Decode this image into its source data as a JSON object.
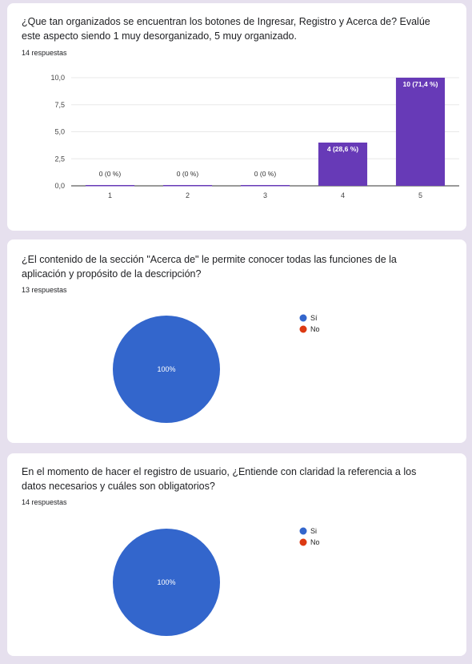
{
  "cards": [
    {
      "question": "¿Que tan organizados se encuentran los botones de Ingresar, Registro y Acerca de? Evalúe este aspecto siendo 1 muy desorganizado, 5 muy organizado.",
      "responses": "14 respuestas",
      "chart_data": {
        "type": "bar",
        "categories": [
          "1",
          "2",
          "3",
          "4",
          "5"
        ],
        "values": [
          0,
          0,
          0,
          4,
          10
        ],
        "data_labels": [
          "0 (0 %)",
          "0 (0 %)",
          "0 (0 %)",
          "4 (28,6 %)",
          "10 (71,4 %)"
        ],
        "yticks": [
          "0,0",
          "2,5",
          "5,0",
          "7,5",
          "10,0"
        ],
        "ytick_values": [
          0,
          2.5,
          5,
          7.5,
          10
        ],
        "ylim": [
          0,
          10
        ],
        "bar_color": "#673ab7",
        "grid": true
      }
    },
    {
      "question": "¿El contenido de la sección \"Acerca de\" le permite conocer todas las funciones de la aplicación y propósito de la descripción?",
      "responses": "13 respuestas",
      "chart_data": {
        "type": "pie",
        "labels": [
          "Sí",
          "No"
        ],
        "values": [
          100,
          0
        ],
        "slice_label": "100%",
        "colors": [
          "#3366cc",
          "#dc3912"
        ],
        "legend": "right"
      }
    },
    {
      "question": "En el momento de hacer el registro de usuario, ¿Entiende con claridad la referencia a los datos necesarios y cuáles son obligatorios?",
      "responses": "14 respuestas",
      "chart_data": {
        "type": "pie",
        "labels": [
          "Si",
          "No"
        ],
        "values": [
          100,
          0
        ],
        "slice_label": "100%",
        "colors": [
          "#3366cc",
          "#dc3912"
        ],
        "legend": "right"
      }
    }
  ]
}
